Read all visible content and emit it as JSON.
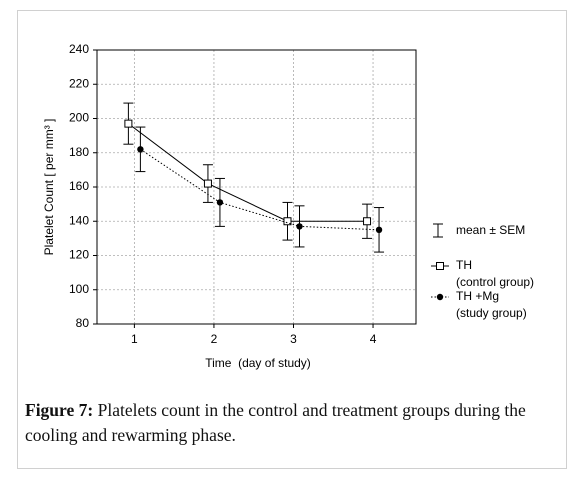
{
  "chart_data": {
    "type": "line",
    "x": [
      1,
      2,
      3,
      4
    ],
    "xlim": [
      0.53,
      4.54
    ],
    "xticks": [
      1,
      2,
      3,
      4
    ],
    "ylim": [
      80,
      240
    ],
    "yticks": [
      80,
      100,
      120,
      140,
      160,
      180,
      200,
      220,
      240
    ],
    "grid": true,
    "x_label": "Time  (day of study)",
    "y_label": "Platelet Count [ per mm³ ]",
    "error_legend": "mean ± SEM",
    "series": [
      {
        "name": "TH",
        "description": "(control group)",
        "color": "#000000",
        "marker": "square",
        "linestyle": "solid",
        "values": [
          197,
          162,
          140,
          140
        ],
        "errors": [
          12,
          11,
          11,
          10
        ]
      },
      {
        "name": "TH +Mg",
        "description": "(study group)",
        "color": "#000000",
        "marker": "circle",
        "linestyle": "dotted",
        "values": [
          182,
          151,
          137,
          135
        ],
        "errors": [
          13,
          14,
          12,
          13
        ]
      }
    ]
  },
  "caption": {
    "label": "Figure 7:",
    "text": "Platelets count in the control and treatment groups during the cooling and rewarming phase."
  }
}
